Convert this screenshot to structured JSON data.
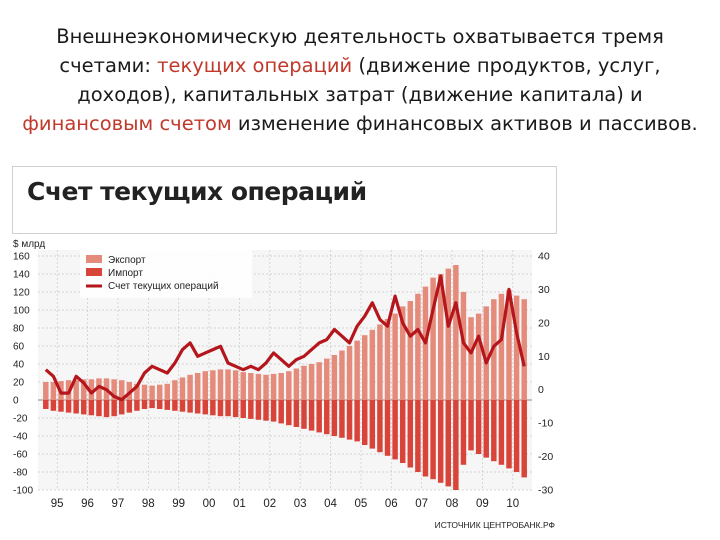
{
  "slide": {
    "line1": "Внешнеэкономическую деятельность охватывается тремя",
    "line2_a": "счетами: ",
    "line2_red": "текущих операций",
    "line2_b": " (движение продуктов, услуг,",
    "line3": "доходов), капитальных затрат (движение капитала) и",
    "line4_red": "финансовым счетом",
    "line4_b": " изменение финансовых активов и пассивов."
  },
  "colors": {
    "export": "#e58b7c",
    "import": "#d9443a",
    "line": "#b5161c",
    "accent_text": "#c0392b"
  },
  "chart_data": {
    "type": "bar",
    "title": "Счет текущих операций",
    "ylabel": "$ млрд",
    "source": "ИСТОЧНИК ЦЕНТРОБАНК.РФ",
    "ylim": [
      -100,
      160
    ],
    "y2lim": [
      -30,
      40
    ],
    "yticks": [
      160,
      140,
      120,
      100,
      80,
      60,
      40,
      20,
      0,
      -20,
      -40,
      -60,
      -80,
      -100
    ],
    "y2ticks": [
      40,
      30,
      20,
      10,
      0,
      -10,
      -20,
      -30
    ],
    "xticks": [
      "95",
      "96",
      "97",
      "98",
      "99",
      "00",
      "01",
      "02",
      "03",
      "04",
      "05",
      "06",
      "07",
      "08",
      "09",
      "10"
    ],
    "legend": [
      {
        "name": "Экспорт",
        "kind": "bar-light"
      },
      {
        "name": "Импорт",
        "kind": "bar-dark"
      },
      {
        "name": "Счет текущих операций",
        "kind": "line"
      }
    ],
    "series": [
      {
        "name": "Экспорт",
        "axis": "left",
        "values": [
          20,
          20,
          21,
          22,
          22,
          23,
          23,
          24,
          24,
          23,
          22,
          20,
          18,
          17,
          16,
          17,
          18,
          22,
          25,
          28,
          30,
          32,
          33,
          34,
          34,
          33,
          31,
          30,
          29,
          28,
          29,
          30,
          32,
          35,
          38,
          40,
          42,
          46,
          50,
          55,
          60,
          66,
          72,
          78,
          84,
          90,
          96,
          104,
          110,
          118,
          126,
          136,
          140,
          146,
          150,
          120,
          92,
          96,
          104,
          112,
          118,
          122,
          116,
          112
        ]
      },
      {
        "name": "Импорт",
        "axis": "left",
        "values": [
          -10,
          -12,
          -13,
          -14,
          -15,
          -16,
          -17,
          -18,
          -19,
          -18,
          -16,
          -14,
          -12,
          -10,
          -9,
          -10,
          -11,
          -12,
          -13,
          -14,
          -15,
          -16,
          -17,
          -18,
          -18,
          -19,
          -20,
          -21,
          -22,
          -23,
          -24,
          -26,
          -28,
          -30,
          -32,
          -34,
          -36,
          -38,
          -40,
          -42,
          -44,
          -46,
          -50,
          -54,
          -58,
          -62,
          -66,
          -70,
          -75,
          -80,
          -85,
          -88,
          -92,
          -96,
          -100,
          -72,
          -56,
          -60,
          -64,
          -68,
          -72,
          -76,
          -80,
          -86
        ]
      },
      {
        "name": "Счет текущих операций",
        "axis": "right",
        "values": [
          6,
          4,
          -1,
          -1,
          4,
          2,
          -1,
          1,
          0,
          -2,
          -3,
          -1,
          1,
          5,
          7,
          6,
          5,
          8,
          12,
          14,
          10,
          11,
          12,
          13,
          8,
          7,
          6,
          7,
          6,
          8,
          11,
          9,
          7,
          9,
          10,
          12,
          14,
          15,
          18,
          16,
          14,
          19,
          22,
          26,
          21,
          19,
          28,
          20,
          16,
          18,
          14,
          24,
          34,
          19,
          26,
          14,
          11,
          16,
          8,
          13,
          15,
          30,
          17,
          7
        ]
      }
    ]
  }
}
